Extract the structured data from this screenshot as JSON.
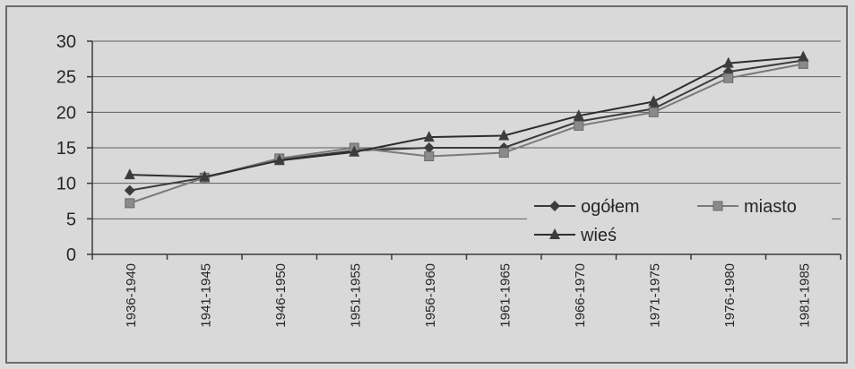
{
  "chart_data": {
    "type": "line",
    "categories": [
      "1936-1940",
      "1941-1945",
      "1946-1950",
      "1951-1955",
      "1956-1960",
      "1961-1965",
      "1966-1970",
      "1971-1975",
      "1976-1980",
      "1981-1985"
    ],
    "ylim": [
      0,
      30
    ],
    "yticks": [
      "0",
      "5",
      "10",
      "15",
      "20",
      "25",
      "30"
    ],
    "grid": true,
    "legend_position": "bottom-right",
    "series": [
      {
        "name": "ogółem",
        "marker": "diamond",
        "values": [
          9,
          10.8,
          13.3,
          14.6,
          15,
          15,
          18.7,
          20.5,
          25.7,
          27.3
        ]
      },
      {
        "name": "miasto",
        "marker": "square",
        "values": [
          7.2,
          10.8,
          13.5,
          15,
          13.8,
          14.3,
          18.1,
          20,
          24.8,
          26.8
        ]
      },
      {
        "name": "wieś",
        "marker": "triangle",
        "values": [
          11.2,
          10.9,
          13.2,
          14.4,
          16.5,
          16.7,
          19.5,
          21.5,
          26.9,
          27.8
        ]
      }
    ],
    "colors": {
      "line": "#3c3c3c",
      "grid": "#5e5e5e",
      "axis": "#3a3a3a"
    }
  }
}
